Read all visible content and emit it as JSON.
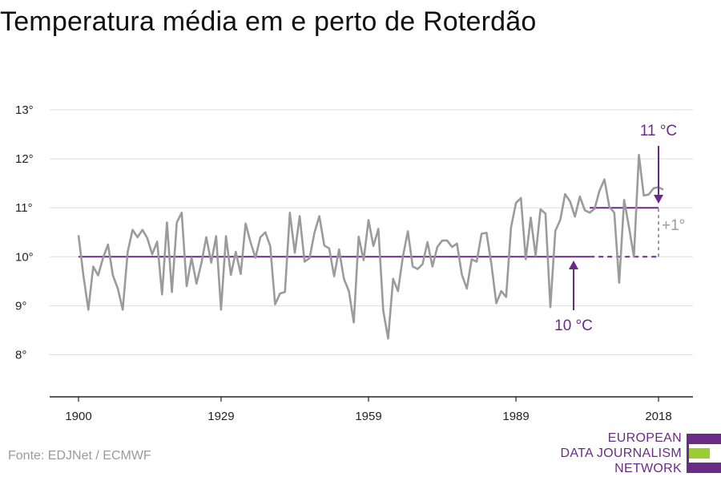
{
  "chart_data": {
    "type": "line",
    "title": "Temperatura média em e perto de Roterdão",
    "xlabel": "",
    "ylabel": "",
    "xlim": [
      1900,
      2018
    ],
    "ylim": [
      7,
      13
    ],
    "grid": true,
    "x_ticks": [
      1900,
      1929,
      1959,
      1989,
      2018
    ],
    "x_tick_labels": [
      "1900",
      "1929",
      "1959",
      "1989",
      "2018"
    ],
    "y_ticks": [
      8,
      9,
      10,
      11,
      12,
      13
    ],
    "y_tick_labels": [
      "8°",
      "9°",
      "10°",
      "11°",
      "12°",
      "13°"
    ],
    "series": [
      {
        "color": "#9b9b9b",
        "x": [
          1900,
          1901,
          1902,
          1903,
          1904,
          1905,
          1906,
          1907,
          1908,
          1909,
          1910,
          1911,
          1912,
          1913,
          1914,
          1915,
          1916,
          1917,
          1918,
          1919,
          1920,
          1921,
          1922,
          1923,
          1924,
          1925,
          1926,
          1927,
          1928,
          1929,
          1930,
          1931,
          1932,
          1933,
          1934,
          1935,
          1936,
          1937,
          1938,
          1939,
          1940,
          1941,
          1942,
          1943,
          1944,
          1945,
          1946,
          1947,
          1948,
          1949,
          1950,
          1951,
          1952,
          1953,
          1954,
          1955,
          1956,
          1957,
          1958,
          1959,
          1960,
          1961,
          1962,
          1963,
          1964,
          1965,
          1966,
          1967,
          1968,
          1969,
          1970,
          1971,
          1972,
          1973,
          1974,
          1975,
          1976,
          1977,
          1978,
          1979,
          1980,
          1981,
          1982,
          1983,
          1984,
          1985,
          1986,
          1987,
          1988,
          1989,
          1990,
          1991,
          1992,
          1993,
          1994,
          1995,
          1996,
          1997,
          1998,
          1999,
          2000,
          2001,
          2002,
          2003,
          2004,
          2005,
          2006,
          2007,
          2008,
          2009,
          2010,
          2011,
          2012,
          2013,
          2014,
          2015,
          2016,
          2017,
          2018,
          2019
        ],
        "values": [
          10.44,
          9.62,
          8.92,
          9.8,
          9.62,
          9.98,
          10.25,
          9.62,
          9.35,
          8.92,
          10.1,
          10.55,
          10.4,
          10.55,
          10.38,
          10.05,
          10.31,
          9.23,
          10.7,
          9.28,
          10.7,
          10.9,
          9.4,
          9.98,
          9.45,
          9.87,
          10.4,
          9.88,
          10.42,
          8.92,
          10.42,
          9.63,
          10.1,
          9.65,
          10.68,
          10.3,
          9.98,
          10.4,
          10.5,
          10.22,
          9.03,
          9.25,
          9.28,
          10.9,
          10.08,
          10.83,
          9.9,
          9.97,
          10.49,
          10.83,
          10.23,
          10.17,
          9.6,
          10.15,
          9.55,
          9.3,
          8.66,
          10.41,
          9.93,
          10.75,
          10.22,
          10.57,
          8.9,
          8.33,
          9.55,
          9.3,
          10.0,
          10.52,
          9.8,
          9.75,
          9.85,
          10.3,
          9.8,
          10.2,
          10.33,
          10.33,
          10.2,
          10.27,
          9.63,
          9.35,
          9.95,
          9.9,
          10.47,
          10.49,
          9.85,
          9.05,
          9.3,
          9.18,
          10.6,
          11.1,
          11.2,
          9.95,
          10.8,
          10.02,
          10.97,
          10.88,
          8.97,
          10.53,
          10.75,
          11.28,
          11.13,
          10.82,
          11.23,
          10.95,
          10.9,
          10.98,
          11.35,
          11.58,
          11.02,
          10.9,
          9.47,
          11.16,
          10.6,
          10.0,
          12.08,
          11.25,
          11.27,
          11.4,
          11.42,
          11.37
        ]
      }
    ],
    "reference_lines": [
      {
        "from": 1900,
        "to": 2004,
        "y": 10,
        "style": "solid",
        "color": "#6a2b86"
      },
      {
        "from": 2004,
        "to": 2018,
        "y": 10,
        "style": "dashed",
        "color": "#6a2b86"
      },
      {
        "from": 2004,
        "to": 2018,
        "y": 11,
        "style": "solid",
        "color": "#6a2b86"
      },
      {
        "from_y": 10,
        "to_y": 11,
        "x": 2018,
        "style": "dashed",
        "color": "#9b9b9b"
      }
    ],
    "annotations": [
      {
        "text": "11 °C",
        "color": "#6a2b86"
      },
      {
        "text": "10 °C",
        "color": "#6a2b86"
      },
      {
        "text": "+1°",
        "color": "#9b9b9b"
      }
    ]
  },
  "source": "Fonte: EDJNet / ECMWF",
  "logo": {
    "lines": [
      "EUROPEAN",
      "DATA JOURNALISM",
      "NETWORK"
    ],
    "colors": {
      "purple": "#6a2b86",
      "green": "#9acd32"
    }
  }
}
